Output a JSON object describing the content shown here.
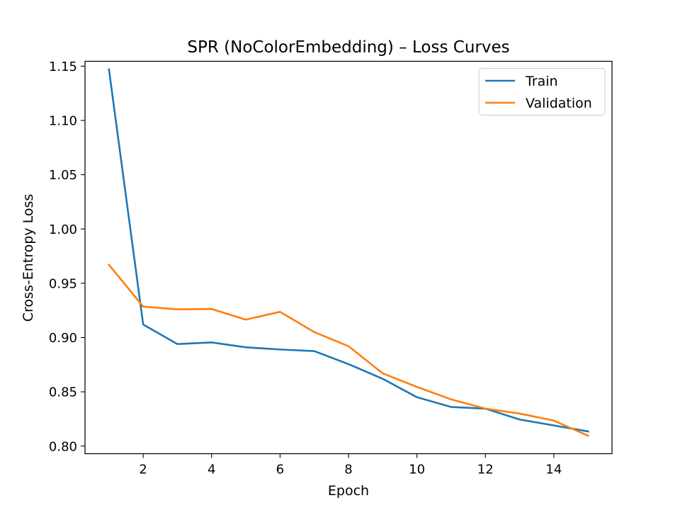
{
  "chart_data": {
    "type": "line",
    "title": "SPR (NoColorEmbedding) – Loss Curves",
    "xlabel": "Epoch",
    "ylabel": "Cross-Entropy Loss",
    "xlim": [
      0.3,
      15.7
    ],
    "ylim": [
      0.793,
      1.1545
    ],
    "xticks": [
      2,
      4,
      6,
      8,
      10,
      12,
      14
    ],
    "yticks": [
      0.8,
      0.85,
      0.9,
      0.95,
      1.0,
      1.05,
      1.1,
      1.15
    ],
    "ytick_labels": [
      "0.80",
      "0.85",
      "0.90",
      "0.95",
      "1.00",
      "1.05",
      "1.10",
      "1.15"
    ],
    "grid": false,
    "legend_position": "top-right",
    "x": [
      1,
      2,
      3,
      4,
      5,
      6,
      7,
      8,
      9,
      10,
      11,
      12,
      13,
      14,
      15
    ],
    "series": [
      {
        "name": "Train",
        "color": "#1f77b4",
        "values": [
          1.147,
          0.912,
          0.894,
          0.8955,
          0.891,
          0.889,
          0.8875,
          0.8755,
          0.862,
          0.845,
          0.836,
          0.8345,
          0.8245,
          0.819,
          0.8135
        ]
      },
      {
        "name": "Validation",
        "color": "#ff7f0e",
        "values": [
          0.967,
          0.9285,
          0.926,
          0.9263,
          0.9165,
          0.9237,
          0.905,
          0.892,
          0.867,
          0.8545,
          0.843,
          0.8345,
          0.83,
          0.8235,
          0.8095
        ]
      }
    ]
  }
}
